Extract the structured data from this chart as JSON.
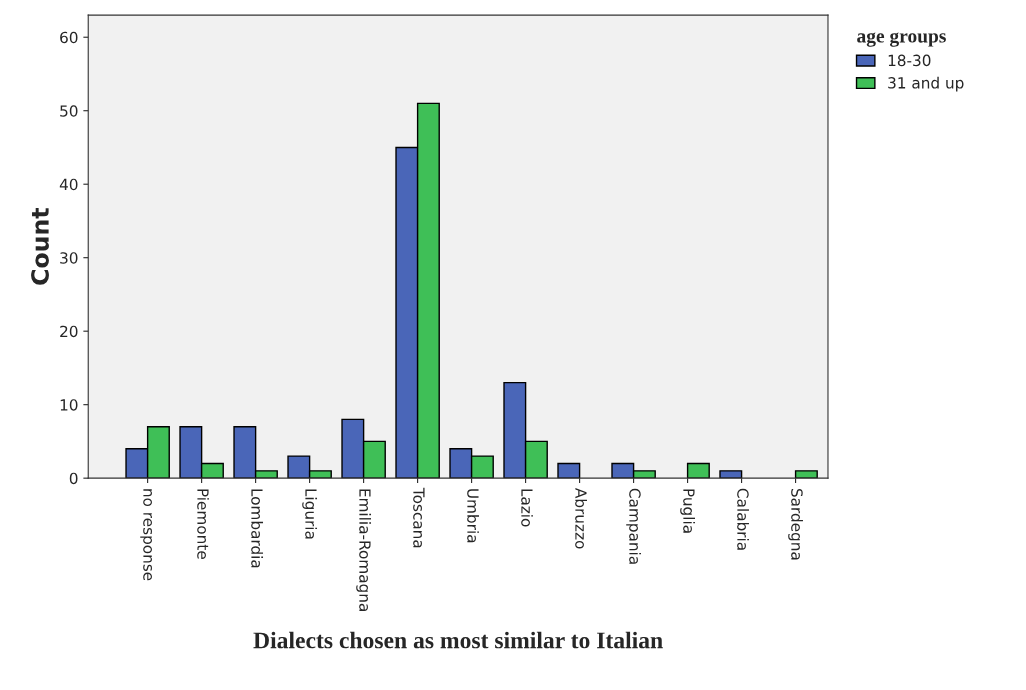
{
  "chart_data": {
    "type": "bar",
    "xlabel": "Dialects chosen as most similar to Italian",
    "ylabel": "Count",
    "legend_title": "age groups",
    "legend": "top right",
    "categories": [
      "no response",
      "Piemonte",
      "Lombardia",
      "Liguria",
      "Emilia-Romagna",
      "Toscana",
      "Umbria",
      "Lazio",
      "Abruzzo",
      "Campania",
      "Puglia",
      "Calabria",
      "Sardegna"
    ],
    "series": [
      {
        "name": "18-30",
        "color": "#4a66b8",
        "values": [
          4,
          7,
          7,
          3,
          8,
          45,
          4,
          13,
          2,
          2,
          null,
          1,
          null
        ]
      },
      {
        "name": "31 and up",
        "color": "#3fbf57",
        "values": [
          7,
          2,
          1,
          1,
          5,
          51,
          3,
          5,
          null,
          1,
          2,
          null,
          1
        ]
      }
    ],
    "ylim": [
      0,
      63
    ],
    "yticks": [
      0,
      10,
      20,
      30,
      40,
      50,
      60
    ],
    "grid": false
  }
}
